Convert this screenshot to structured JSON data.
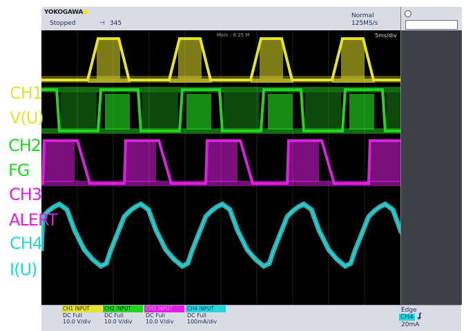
{
  "header": {
    "brand": "YOKOGAWA",
    "status": "Stopped",
    "record_count": "345",
    "acq_mode": "Normal",
    "sample_rate": "125MS/s",
    "main_label": "Main : 6.25 M",
    "time_div": "5ms/div"
  },
  "colors": {
    "ch1": "#e6e22e",
    "ch2": "#23d51f",
    "ch3": "#e01ee3",
    "ch4": "#22d7da"
  },
  "side_labels": [
    "CH1",
    "V(U)",
    "CH2",
    "FG",
    "CH3",
    "ALERT",
    "CH4",
    "I(U)"
  ],
  "channels": [
    {
      "title": "CH1 INPUT",
      "coupling": "DC Full",
      "scale": "10.0 V/div"
    },
    {
      "title": "CH2 INPUT",
      "coupling": "DC Full",
      "scale": "10.0 V/div"
    },
    {
      "title": "CH3 INPUT",
      "coupling": "DC Full",
      "scale": "10.0 V/div"
    },
    {
      "title": "CH4 INPUT",
      "coupling": "DC Full",
      "scale": "100mA/div"
    }
  ],
  "trigger": {
    "type": "Edge",
    "source": "CH4",
    "level": "20mA"
  }
}
